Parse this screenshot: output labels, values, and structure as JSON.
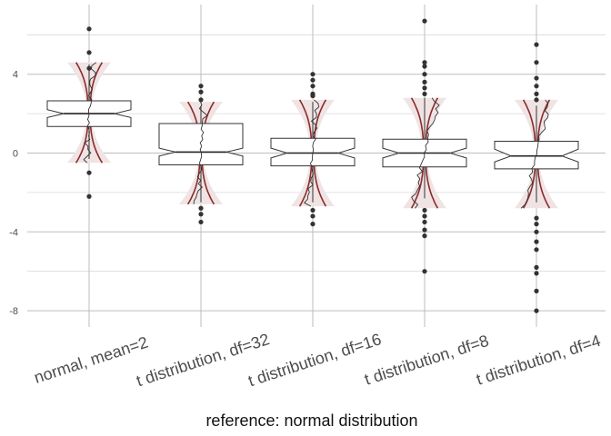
{
  "chart_data": {
    "type": "boxplot",
    "title": "",
    "xlabel": "reference: normal distribution",
    "ylabel": "",
    "ylim": [
      -9,
      7
    ],
    "yticks": [
      4,
      0,
      -4,
      -8
    ],
    "grid": true,
    "categories": [
      "normal, mean=2",
      "t distribution, df=32",
      "t distribution, df=16",
      "t distribution, df=8",
      "t distribution, df=4"
    ],
    "boxes": [
      {
        "name": "normal, mean=2",
        "q1": 1.35,
        "median": 2.0,
        "q3": 2.65,
        "notch_low": 1.8,
        "notch_high": 2.2,
        "whisker_low": -0.3,
        "whisker_high": 4.5,
        "outliers": [
          6.3,
          5.1,
          4.3,
          -1.0,
          -2.2
        ],
        "band_low": -0.5,
        "band_high": 4.6
      },
      {
        "name": "t distribution, df=32",
        "q1": -0.6,
        "median": 0.05,
        "q3": 1.5,
        "notch_low": -0.15,
        "notch_high": 0.25,
        "whisker_low": -2.5,
        "whisker_high": 2.4,
        "outliers": [
          3.4,
          3.1,
          2.7,
          -2.8,
          -3.1,
          -3.5
        ],
        "band_low": -2.6,
        "band_high": 2.6
      },
      {
        "name": "t distribution, df=16",
        "q1": -0.65,
        "median": 0.0,
        "q3": 0.75,
        "notch_low": -0.25,
        "notch_high": 0.25,
        "whisker_low": -2.5,
        "whisker_high": 2.6,
        "outliers": [
          4.0,
          3.7,
          3.4,
          3.0,
          2.9,
          -2.9,
          -3.2,
          -3.6
        ],
        "band_low": -2.7,
        "band_high": 2.7
      },
      {
        "name": "t distribution, df=8",
        "q1": -0.7,
        "median": 0.0,
        "q3": 0.7,
        "notch_low": -0.25,
        "notch_high": 0.25,
        "whisker_low": -2.3,
        "whisker_high": 2.8,
        "outliers": [
          6.7,
          4.6,
          4.4,
          4.0,
          3.6,
          3.3,
          3.0,
          -2.9,
          -3.2,
          -3.5,
          -3.9,
          -4.2,
          -6.0
        ],
        "band_low": -2.8,
        "band_high": 2.8
      },
      {
        "name": "t distribution, df=4",
        "q1": -0.8,
        "median": -0.15,
        "q3": 0.6,
        "notch_low": -0.45,
        "notch_high": 0.2,
        "whisker_low": -2.5,
        "whisker_high": 2.4,
        "outliers": [
          5.5,
          4.6,
          3.8,
          3.4,
          3.0,
          2.7,
          -3.3,
          -3.6,
          -4.0,
          -4.5,
          -4.9,
          -5.8,
          -6.1,
          -7.0,
          -8.0
        ],
        "band_low": -2.8,
        "band_high": 2.7
      }
    ]
  }
}
